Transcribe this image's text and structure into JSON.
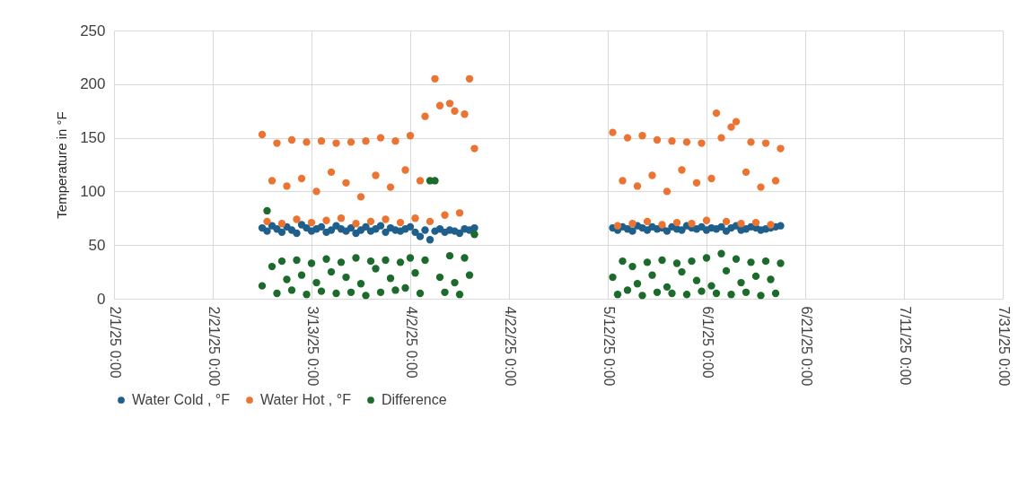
{
  "chart_data": {
    "type": "scatter",
    "ylabel": "Temperature in °F",
    "x": [
      "2025-03-03",
      "2025-03-04",
      "2025-03-05",
      "2025-03-06",
      "2025-03-07",
      "2025-03-08",
      "2025-03-09",
      "2025-03-10",
      "2025-03-11",
      "2025-03-12",
      "2025-03-13",
      "2025-03-14",
      "2025-03-15",
      "2025-03-16",
      "2025-03-17",
      "2025-03-18",
      "2025-03-19",
      "2025-03-20",
      "2025-03-21",
      "2025-03-22",
      "2025-03-23",
      "2025-03-24",
      "2025-03-25",
      "2025-03-26",
      "2025-03-27",
      "2025-03-28",
      "2025-03-29",
      "2025-03-30",
      "2025-03-31",
      "2025-04-01",
      "2025-04-02",
      "2025-04-03",
      "2025-04-04",
      "2025-04-05",
      "2025-04-06",
      "2025-04-07",
      "2025-04-08",
      "2025-04-09",
      "2025-04-10",
      "2025-04-11",
      "2025-04-12",
      "2025-04-13",
      "2025-04-14",
      "2025-04-15",
      "2025-05-13",
      "2025-05-14",
      "2025-05-15",
      "2025-05-16",
      "2025-05-17",
      "2025-05-18",
      "2025-05-19",
      "2025-05-20",
      "2025-05-21",
      "2025-05-22",
      "2025-05-23",
      "2025-05-24",
      "2025-05-25",
      "2025-05-26",
      "2025-05-27",
      "2025-05-28",
      "2025-05-29",
      "2025-05-30",
      "2025-05-31",
      "2025-06-01",
      "2025-06-02",
      "2025-06-03",
      "2025-06-04",
      "2025-06-05",
      "2025-06-06",
      "2025-06-07",
      "2025-06-08",
      "2025-06-09",
      "2025-06-10",
      "2025-06-11",
      "2025-06-12",
      "2025-06-13",
      "2025-06-14",
      "2025-06-15",
      "2025-06-16"
    ],
    "series": [
      {
        "name": "Water Cold , °F",
        "color": "#1f5f8c",
        "values": [
          66,
          63,
          68,
          65,
          62,
          67,
          64,
          61,
          69,
          66,
          63,
          65,
          67,
          62,
          64,
          68,
          65,
          63,
          66,
          61,
          64,
          67,
          63,
          65,
          68,
          62,
          66,
          64,
          63,
          65,
          67,
          62,
          58,
          64,
          55,
          63,
          65,
          62,
          64,
          63,
          61,
          65,
          64,
          66,
          66,
          64,
          67,
          65,
          63,
          68,
          66,
          64,
          67,
          65,
          66,
          63,
          67,
          65,
          64,
          68,
          66,
          65,
          67,
          64,
          66,
          65,
          67,
          63,
          66,
          68,
          64,
          65,
          67,
          66,
          64,
          65,
          66,
          67,
          68
        ]
      },
      {
        "name": "Water Hot , °F",
        "color": "#ec7433",
        "values": [
          153,
          72,
          110,
          145,
          70,
          105,
          148,
          74,
          112,
          146,
          71,
          100,
          147,
          73,
          118,
          145,
          75,
          108,
          146,
          70,
          95,
          147,
          72,
          115,
          150,
          74,
          104,
          147,
          71,
          120,
          152,
          75,
          110,
          170,
          72,
          205,
          180,
          78,
          182,
          175,
          80,
          172,
          205,
          140,
          155,
          68,
          110,
          150,
          70,
          105,
          152,
          72,
          115,
          148,
          69,
          100,
          147,
          71,
          120,
          146,
          70,
          108,
          145,
          73,
          112,
          173,
          150,
          72,
          160,
          165,
          70,
          118,
          146,
          71,
          104,
          145,
          69,
          110,
          140
        ]
      },
      {
        "name": "Difference",
        "color": "#1d6b2c",
        "values": [
          12,
          82,
          30,
          5,
          35,
          18,
          8,
          36,
          22,
          4,
          33,
          15,
          7,
          37,
          25,
          5,
          34,
          20,
          6,
          38,
          14,
          3,
          35,
          28,
          6,
          36,
          19,
          8,
          34,
          10,
          38,
          24,
          5,
          36,
          110,
          110,
          20,
          6,
          40,
          15,
          4,
          38,
          22,
          60,
          20,
          4,
          35,
          8,
          30,
          14,
          3,
          34,
          22,
          6,
          36,
          11,
          5,
          33,
          25,
          4,
          35,
          17,
          7,
          38,
          12,
          5,
          42,
          26,
          4,
          37,
          15,
          6,
          34,
          21,
          3,
          35,
          18,
          5,
          33
        ]
      }
    ],
    "xlim": [
      "2025-02-01",
      "2025-07-31"
    ],
    "xticks": [
      {
        "value": "2025-02-01",
        "label": "2/1/25 0:00"
      },
      {
        "value": "2025-02-21",
        "label": "2/21/25 0:00"
      },
      {
        "value": "2025-03-13",
        "label": "3/13/25 0:00"
      },
      {
        "value": "2025-04-02",
        "label": "4/2/25 0:00"
      },
      {
        "value": "2025-04-22",
        "label": "4/22/25 0:00"
      },
      {
        "value": "2025-05-12",
        "label": "5/12/25 0:00"
      },
      {
        "value": "2025-06-01",
        "label": "6/1/25 0:00"
      },
      {
        "value": "2025-06-21",
        "label": "6/21/25 0:00"
      },
      {
        "value": "2025-07-11",
        "label": "7/11/25 0:00"
      },
      {
        "value": "2025-07-31",
        "label": "7/31/25 0:00"
      }
    ],
    "ylim": [
      0,
      250
    ],
    "yticks": [
      0,
      50,
      100,
      150,
      200,
      250
    ],
    "grid": true,
    "legend": "bottom",
    "marker": "circle"
  }
}
